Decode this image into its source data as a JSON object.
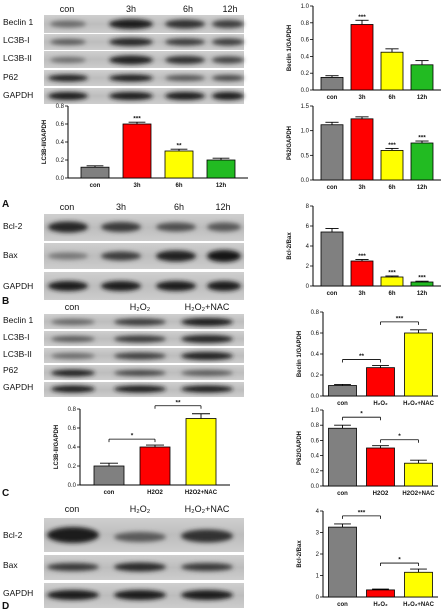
{
  "panels": [
    {
      "letter": "A",
      "lanes": [
        "con",
        "3h",
        "6h",
        "12h"
      ],
      "rows": [
        "Beclin 1",
        "LC3B-I",
        "LC3B-II",
        "P62",
        "GAPDH"
      ]
    },
    {
      "letter": "",
      "lanes": [
        "con",
        "3h",
        "6h",
        "12h"
      ],
      "rows": [
        "Bcl-2",
        "Bax",
        "GAPDH"
      ]
    },
    {
      "letter": "B",
      "lanes": [
        "con",
        "H₂O₂",
        "H₂O₂+NAC"
      ],
      "rows": [
        "Beclin 1",
        "LC3B-I",
        "LC3B-II",
        "P62",
        "GAPDH"
      ]
    },
    {
      "letter": "C",
      "lanes": [
        "con",
        "H₂O₂",
        "H₂O₂+NAC"
      ],
      "rows": [
        "Bcl-2",
        "Bax",
        "GAPDH"
      ]
    },
    {
      "letter": "D",
      "lanes": [],
      "rows": []
    }
  ],
  "colors": {
    "con": "#808080",
    "t1": "#ff0000",
    "t2": "#ffff00",
    "t3": "#22bb22"
  },
  "chart_data": [
    {
      "id": "beclin-time",
      "type": "bar",
      "categories": [
        "con",
        "3h",
        "6h",
        "12h"
      ],
      "values": [
        0.15,
        0.78,
        0.45,
        0.3
      ],
      "errors": [
        0.02,
        0.05,
        0.04,
        0.05
      ],
      "ylabel": "Beclin 1/GAPDH",
      "ylim": [
        0,
        1.0
      ],
      "ticks": [
        "0.0",
        "0.2",
        "0.4",
        "0.6",
        "0.8",
        "1.0"
      ],
      "tick_values": [
        0,
        0.2,
        0.4,
        0.6,
        0.8,
        1.0
      ],
      "stars": [
        "",
        "***",
        "",
        ""
      ],
      "colors": [
        "#808080",
        "#ff0000",
        "#ffff00",
        "#22bb22"
      ]
    },
    {
      "id": "lc3b-time",
      "type": "bar",
      "categories": [
        "con",
        "3h",
        "6h",
        "12h"
      ],
      "values": [
        0.12,
        0.6,
        0.3,
        0.2
      ],
      "errors": [
        0.015,
        0.02,
        0.02,
        0.02
      ],
      "ylabel": "LC3B-II/GAPDH",
      "ylim": [
        0,
        0.8
      ],
      "ticks": [
        "0.0",
        "0.2",
        "0.4",
        "0.6",
        "0.8"
      ],
      "tick_values": [
        0,
        0.2,
        0.4,
        0.6,
        0.8
      ],
      "stars": [
        "",
        "***",
        "**",
        ""
      ],
      "colors": [
        "#808080",
        "#ff0000",
        "#ffff00",
        "#22bb22"
      ]
    },
    {
      "id": "p62-time",
      "type": "bar",
      "categories": [
        "con",
        "3h",
        "6h",
        "12h"
      ],
      "values": [
        1.12,
        1.24,
        0.6,
        0.75
      ],
      "errors": [
        0.05,
        0.04,
        0.04,
        0.04
      ],
      "ylabel": "P62/GAPDH",
      "ylim": [
        0,
        1.5
      ],
      "ticks": [
        "0.0",
        "0.5",
        "1.0",
        "1.5"
      ],
      "tick_values": [
        0,
        0.5,
        1.0,
        1.5
      ],
      "stars": [
        "",
        "",
        "***",
        "***"
      ],
      "colors": [
        "#808080",
        "#ff0000",
        "#ffff00",
        "#22bb22"
      ]
    },
    {
      "id": "bcl2bax-time",
      "type": "bar",
      "categories": [
        "con",
        "3h",
        "6h",
        "12h"
      ],
      "values": [
        5.4,
        2.5,
        0.9,
        0.4
      ],
      "errors": [
        0.35,
        0.15,
        0.1,
        0.08
      ],
      "ylabel": "Bcl-2/Bax",
      "ylim": [
        0,
        8
      ],
      "ticks": [
        "0",
        "2",
        "4",
        "6",
        "8"
      ],
      "tick_values": [
        0,
        2,
        4,
        6,
        8
      ],
      "stars": [
        "",
        "***",
        "***",
        "***"
      ],
      "colors": [
        "#808080",
        "#ff0000",
        "#ffff00",
        "#22bb22"
      ]
    },
    {
      "id": "beclin-nac",
      "type": "bar",
      "categories": [
        "con",
        "H₂O₂",
        "H₂O₂+NAC"
      ],
      "values": [
        0.1,
        0.27,
        0.6
      ],
      "errors": [
        0.01,
        0.02,
        0.03
      ],
      "ylabel": "Beclin 1/GAPDH",
      "ylim": [
        0,
        0.8
      ],
      "ticks": [
        "0.0",
        "0.2",
        "0.4",
        "0.6",
        "0.8"
      ],
      "tick_values": [
        0,
        0.2,
        0.4,
        0.6,
        0.8
      ],
      "stars": [
        "",
        "",
        ""
      ],
      "colors": [
        "#808080",
        "#ff0000",
        "#ffff00"
      ],
      "brackets": [
        {
          "from": 0,
          "to": 1,
          "label": "**",
          "level": 0
        },
        {
          "from": 1,
          "to": 2,
          "label": "***",
          "level": 1
        }
      ]
    },
    {
      "id": "lc3b-nac",
      "type": "bar",
      "categories": [
        "con",
        "H2O2",
        "H2O2+NAC"
      ],
      "values": [
        0.2,
        0.4,
        0.7
      ],
      "errors": [
        0.03,
        0.02,
        0.05
      ],
      "ylabel": "LC3B-II/GAPDH",
      "ylim": [
        0,
        0.8
      ],
      "ticks": [
        "0.0",
        "0.2",
        "0.4",
        "0.6",
        "0.8"
      ],
      "tick_values": [
        0,
        0.2,
        0.4,
        0.6,
        0.8
      ],
      "stars": [
        "",
        "",
        ""
      ],
      "colors": [
        "#808080",
        "#ff0000",
        "#ffff00"
      ],
      "brackets": [
        {
          "from": 0,
          "to": 1,
          "label": "*",
          "level": 0
        },
        {
          "from": 1,
          "to": 2,
          "label": "**",
          "level": 1
        }
      ]
    },
    {
      "id": "p62-nac",
      "type": "bar",
      "categories": [
        "con",
        "H2O2",
        "H2O2+NAC"
      ],
      "values": [
        0.76,
        0.5,
        0.3
      ],
      "errors": [
        0.04,
        0.03,
        0.04
      ],
      "ylabel": "P62/GAPDH",
      "ylim": [
        0,
        1.0
      ],
      "ticks": [
        "0.0",
        "0.2",
        "0.4",
        "0.6",
        "0.8",
        "1.0"
      ],
      "tick_values": [
        0,
        0.2,
        0.4,
        0.6,
        0.8,
        1.0
      ],
      "stars": [
        "",
        "",
        ""
      ],
      "colors": [
        "#808080",
        "#ff0000",
        "#ffff00"
      ],
      "brackets": [
        {
          "from": 0,
          "to": 1,
          "label": "*",
          "level": 1
        },
        {
          "from": 1,
          "to": 2,
          "label": "*",
          "level": 0
        }
      ]
    },
    {
      "id": "bcl2bax-nac",
      "type": "bar",
      "categories": [
        "con",
        "H₂O₂",
        "H₂O₂+NAC"
      ],
      "values": [
        3.25,
        0.33,
        1.15
      ],
      "errors": [
        0.15,
        0.04,
        0.15
      ],
      "ylabel": "Bcl-2/Bax",
      "ylim": [
        0,
        4
      ],
      "ticks": [
        "0",
        "1",
        "2",
        "3",
        "4"
      ],
      "tick_values": [
        0,
        1,
        2,
        3,
        4
      ],
      "stars": [
        "",
        "",
        ""
      ],
      "colors": [
        "#808080",
        "#ff0000",
        "#ffff00"
      ],
      "brackets": [
        {
          "from": 0,
          "to": 1,
          "label": "***",
          "level": 1
        },
        {
          "from": 1,
          "to": 2,
          "label": "*",
          "level": 0
        }
      ]
    }
  ]
}
